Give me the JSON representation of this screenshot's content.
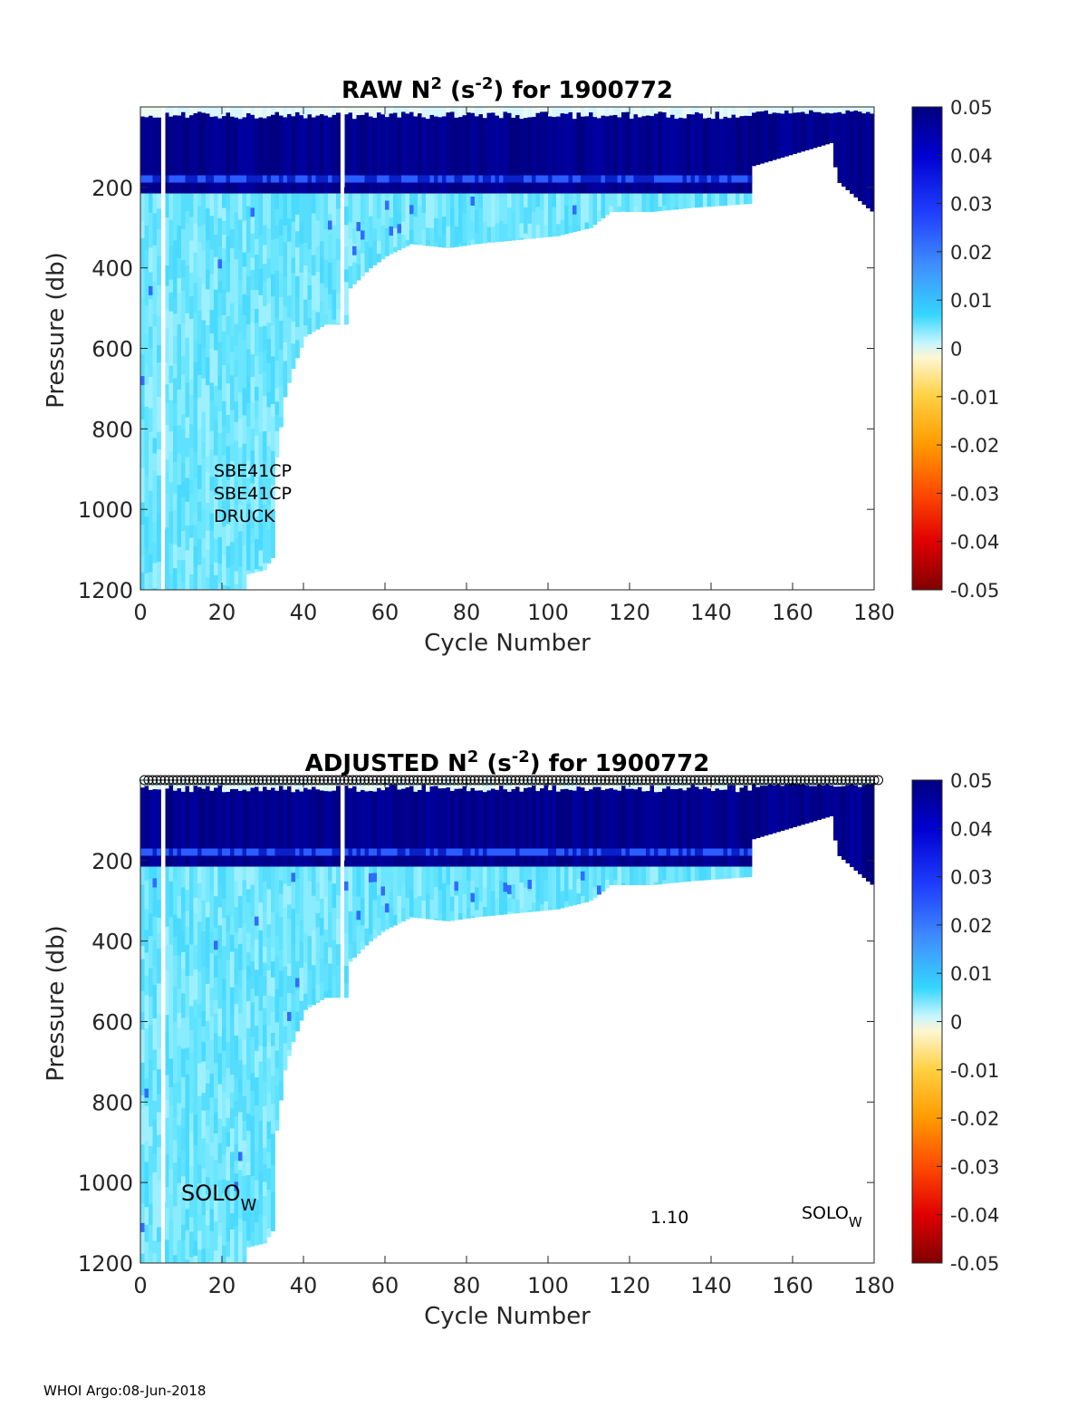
{
  "footer": "WHOI Argo:08-Jun-2018",
  "colorbar": {
    "ticks": [
      "0.05",
      "0.04",
      "0.03",
      "0.02",
      "0.01",
      "0",
      "-0.01",
      "-0.02",
      "-0.03",
      "-0.04",
      "-0.05"
    ],
    "range": [
      -0.05,
      0.05
    ]
  },
  "chart_data": [
    {
      "type": "heatmap",
      "title_parts": [
        "RAW N",
        "2",
        " (s",
        "-2",
        ") for 1900772"
      ],
      "xlabel": "Cycle Number",
      "ylabel": "Pressure (db)",
      "xlim": [
        0,
        180
      ],
      "ylim": [
        0,
        1200
      ],
      "xticks": [
        "0",
        "20",
        "40",
        "60",
        "80",
        "100",
        "120",
        "140",
        "160",
        "180"
      ],
      "yticks": [
        "200",
        "400",
        "600",
        "800",
        "1000",
        "1200"
      ],
      "annotations": [
        "SBE41CP",
        "SBE41CP",
        "DRUCK"
      ],
      "max_depth_by_cycle": [
        [
          0,
          1200
        ],
        [
          20,
          1200
        ],
        [
          25,
          1200
        ],
        [
          26,
          1160
        ],
        [
          30,
          1150
        ],
        [
          32,
          1120
        ],
        [
          33,
          870
        ],
        [
          35,
          720
        ],
        [
          37,
          650
        ],
        [
          40,
          570
        ],
        [
          45,
          540
        ],
        [
          50,
          540
        ],
        [
          51,
          450
        ],
        [
          56,
          400
        ],
        [
          60,
          370
        ],
        [
          66,
          340
        ],
        [
          75,
          350
        ],
        [
          82,
          340
        ],
        [
          92,
          330
        ],
        [
          102,
          320
        ],
        [
          110,
          300
        ],
        [
          115,
          260
        ],
        [
          125,
          260
        ],
        [
          135,
          250
        ],
        [
          149,
          240
        ]
      ],
      "gaps": [
        5,
        49
      ],
      "missing_data_marker": false
    },
    {
      "type": "heatmap",
      "title_parts": [
        "ADJUSTED N",
        "2",
        " (s",
        "-2",
        ") for 1900772"
      ],
      "xlabel": "Cycle Number",
      "ylabel": "Pressure (db)",
      "xlim": [
        0,
        180
      ],
      "ylim": [
        0,
        1200
      ],
      "xticks": [
        "0",
        "20",
        "40",
        "60",
        "80",
        "100",
        "120",
        "140",
        "160",
        "180"
      ],
      "yticks": [
        "200",
        "400",
        "600",
        "800",
        "1000",
        "1200"
      ],
      "annotations": {
        "left": {
          "main": "SOLO",
          "sub": "W"
        },
        "mid": "1.10",
        "right": {
          "main": "SOLO",
          "sub": "W"
        }
      },
      "max_depth_by_cycle": [
        [
          0,
          1200
        ],
        [
          20,
          1200
        ],
        [
          25,
          1200
        ],
        [
          26,
          1160
        ],
        [
          30,
          1150
        ],
        [
          32,
          1120
        ],
        [
          33,
          870
        ],
        [
          35,
          720
        ],
        [
          37,
          650
        ],
        [
          40,
          570
        ],
        [
          45,
          540
        ],
        [
          50,
          540
        ],
        [
          51,
          450
        ],
        [
          56,
          400
        ],
        [
          60,
          370
        ],
        [
          66,
          340
        ],
        [
          75,
          350
        ],
        [
          82,
          340
        ],
        [
          92,
          330
        ],
        [
          102,
          320
        ],
        [
          110,
          300
        ],
        [
          115,
          260
        ],
        [
          125,
          260
        ],
        [
          135,
          250
        ],
        [
          149,
          240
        ]
      ],
      "gaps": [
        5,
        49
      ],
      "missing_data_marker": true
    }
  ]
}
